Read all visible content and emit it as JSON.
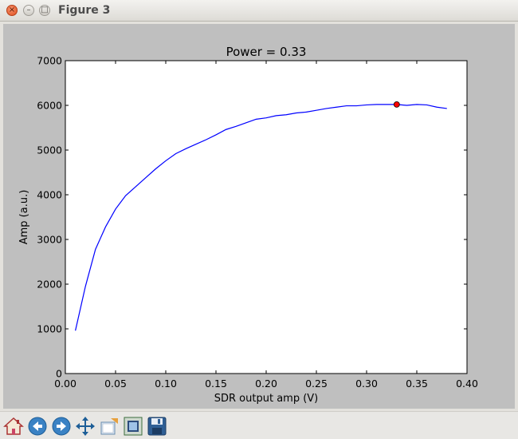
{
  "window": {
    "title": "Figure 3",
    "close_glyph": "×",
    "minimize_glyph": "–",
    "maximize_glyph": "□"
  },
  "toolbar": {
    "buttons": [
      {
        "name": "home-icon",
        "tooltip": "Reset original view"
      },
      {
        "name": "back-icon",
        "tooltip": "Back to previous view"
      },
      {
        "name": "forward-icon",
        "tooltip": "Forward to next view"
      },
      {
        "name": "pan-icon",
        "tooltip": "Pan axes"
      },
      {
        "name": "zoom-icon",
        "tooltip": "Zoom to rectangle"
      },
      {
        "name": "subplots-icon",
        "tooltip": "Configure subplots"
      },
      {
        "name": "save-icon",
        "tooltip": "Save the figure"
      }
    ]
  },
  "colors": {
    "figure_bg": "#bfbfbf",
    "axes_bg": "#ffffff",
    "line": "#0000ff",
    "marker": "#ff0000"
  },
  "chart_data": {
    "type": "line",
    "title": "Power = 0.33",
    "xlabel": "SDR output amp (V)",
    "ylabel": "Amp (a.u.)",
    "xlim": [
      0.0,
      0.4
    ],
    "ylim": [
      0,
      7000
    ],
    "xticks": [
      "0.00",
      "0.05",
      "0.10",
      "0.15",
      "0.20",
      "0.25",
      "0.30",
      "0.35",
      "0.40"
    ],
    "yticks": [
      "0",
      "1000",
      "2000",
      "3000",
      "4000",
      "5000",
      "6000",
      "7000"
    ],
    "grid": false,
    "series": [
      {
        "x": [
          0.01,
          0.02,
          0.03,
          0.04,
          0.05,
          0.06,
          0.07,
          0.08,
          0.09,
          0.1,
          0.11,
          0.12,
          0.13,
          0.14,
          0.15,
          0.16,
          0.17,
          0.18,
          0.19,
          0.2,
          0.21,
          0.22,
          0.23,
          0.24,
          0.25,
          0.26,
          0.27,
          0.28,
          0.29,
          0.3,
          0.31,
          0.32,
          0.33,
          0.34,
          0.35,
          0.36,
          0.37,
          0.38
        ],
        "y": [
          960,
          1950,
          2780,
          3280,
          3680,
          3980,
          4180,
          4380,
          4580,
          4760,
          4920,
          5030,
          5130,
          5230,
          5340,
          5460,
          5530,
          5610,
          5690,
          5720,
          5770,
          5790,
          5830,
          5850,
          5890,
          5930,
          5960,
          5990,
          5990,
          6010,
          6020,
          6020,
          6020,
          6000,
          6020,
          6010,
          5960,
          5930
        ]
      }
    ],
    "marker_point": {
      "x": 0.33,
      "y": 6020
    }
  }
}
